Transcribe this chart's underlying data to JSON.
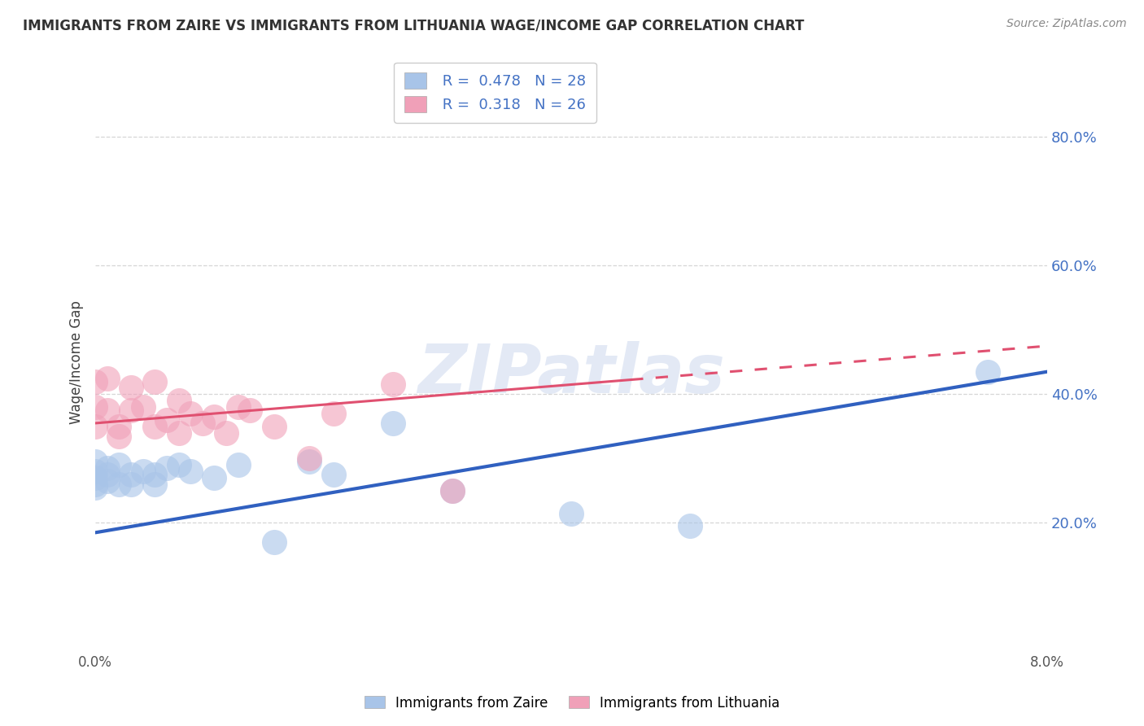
{
  "title": "IMMIGRANTS FROM ZAIRE VS IMMIGRANTS FROM LITHUANIA WAGE/INCOME GAP CORRELATION CHART",
  "source": "Source: ZipAtlas.com",
  "ylabel": "Wage/Income Gap",
  "xlim": [
    0.0,
    0.08
  ],
  "ylim": [
    0.0,
    0.9
  ],
  "yticks": [
    0.2,
    0.4,
    0.6,
    0.8
  ],
  "ytick_labels": [
    "20.0%",
    "40.0%",
    "60.0%",
    "80.0%"
  ],
  "legend_r1": "R = 0.478",
  "legend_n1": "N = 28",
  "legend_r2": "R = 0.318",
  "legend_n2": "N = 26",
  "color_zaire": "#a8c4e8",
  "color_lithuania": "#f0a0b8",
  "color_line_zaire": "#3060c0",
  "color_line_lithuania": "#e05070",
  "color_title": "#333333",
  "color_text_blue": "#4472c4",
  "color_source": "#888888",
  "watermark_color": "#ccd8ee",
  "zaire_x": [
    0.0,
    0.0,
    0.0,
    0.0,
    0.0,
    0.001,
    0.001,
    0.001,
    0.002,
    0.002,
    0.003,
    0.003,
    0.004,
    0.005,
    0.005,
    0.006,
    0.007,
    0.008,
    0.01,
    0.012,
    0.015,
    0.018,
    0.02,
    0.025,
    0.03,
    0.04,
    0.05,
    0.075
  ],
  "zaire_y": [
    0.295,
    0.28,
    0.27,
    0.26,
    0.255,
    0.285,
    0.275,
    0.265,
    0.29,
    0.26,
    0.275,
    0.26,
    0.28,
    0.275,
    0.26,
    0.285,
    0.29,
    0.28,
    0.27,
    0.29,
    0.17,
    0.295,
    0.275,
    0.355,
    0.25,
    0.215,
    0.195,
    0.435
  ],
  "lithuania_x": [
    0.0,
    0.0,
    0.0,
    0.001,
    0.001,
    0.002,
    0.002,
    0.003,
    0.003,
    0.004,
    0.005,
    0.005,
    0.006,
    0.007,
    0.007,
    0.008,
    0.009,
    0.01,
    0.011,
    0.012,
    0.013,
    0.015,
    0.018,
    0.02,
    0.025,
    0.03
  ],
  "lithuania_y": [
    0.35,
    0.42,
    0.38,
    0.375,
    0.425,
    0.335,
    0.35,
    0.375,
    0.41,
    0.38,
    0.42,
    0.35,
    0.36,
    0.34,
    0.39,
    0.37,
    0.355,
    0.365,
    0.34,
    0.38,
    0.375,
    0.35,
    0.3,
    0.37,
    0.415,
    0.25
  ],
  "zaire_line_x0": 0.0,
  "zaire_line_y0": 0.185,
  "zaire_line_x1": 0.08,
  "zaire_line_y1": 0.435,
  "lith_line_x0": 0.0,
  "lith_line_y0": 0.355,
  "lith_line_x1": 0.08,
  "lith_line_y1": 0.475
}
